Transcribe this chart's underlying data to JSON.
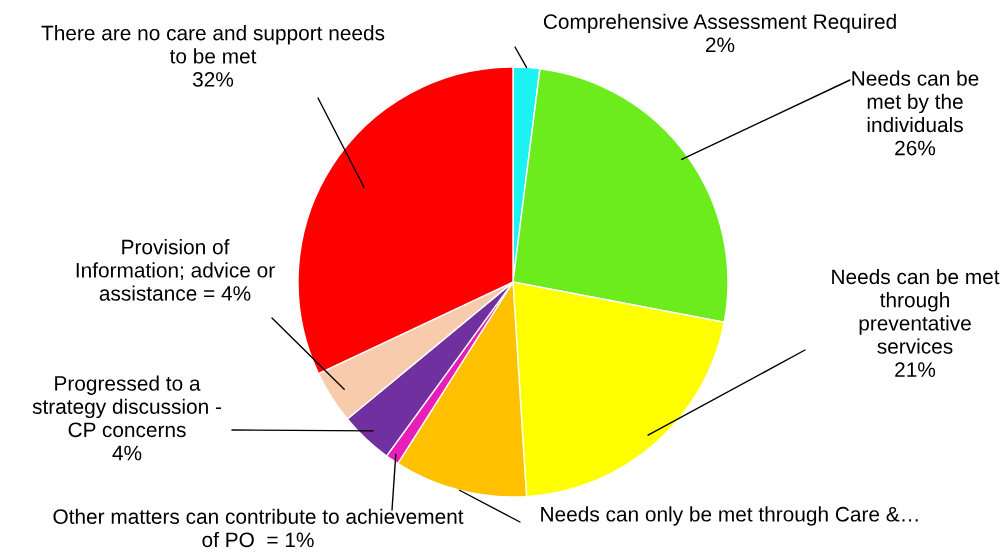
{
  "chart_data": {
    "type": "pie",
    "categories": [
      "Comprehensive Assessment Required\n2%",
      "Needs can be\nmet by the\nindividuals\n26%",
      "Needs can be met\nthrough\npreventative\nservices\n21%",
      "Needs can only be met through Care &…",
      "Other matters can contribute to achievement\nof PO  = 1%",
      "Progressed to a\nstrategy discussion -\nCP concerns\n4%",
      "Provision of\nInformation; advice or\nassistance = 4%",
      "There are no care and support needs\nto be met\n32%"
    ],
    "values": [
      2,
      26,
      21,
      10,
      1,
      4,
      4,
      32
    ],
    "colors": [
      "#1cf2f2",
      "#6cec1c",
      "#ffff00",
      "#ffc000",
      "#e81eb8",
      "#7030a0",
      "#f8cbad",
      "#ff0000"
    ],
    "legend": false
  }
}
